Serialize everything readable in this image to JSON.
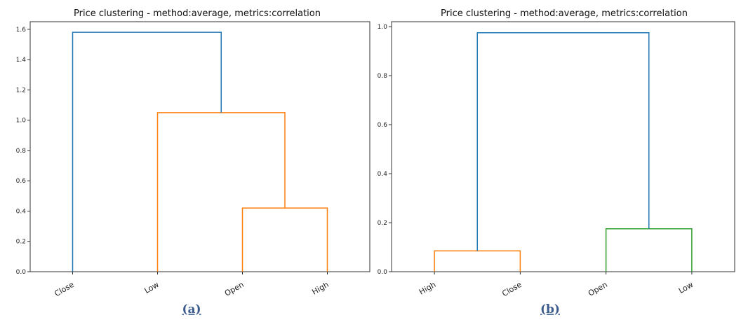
{
  "chart_data": [
    {
      "type": "dendrogram",
      "title": "Price clustering - method:average, metrics:correlation",
      "caption": "(a)",
      "leaves": [
        "Close",
        "Low",
        "Open",
        "High"
      ],
      "ylim": [
        0,
        1.65
      ],
      "yticks": [
        0.0,
        0.2,
        0.4,
        0.6,
        0.8,
        1.0,
        1.2,
        1.4,
        1.6
      ],
      "ytick_labels": [
        "0.0",
        "0.2",
        "0.4",
        "0.6",
        "0.8",
        "1.0",
        "1.2",
        "1.4",
        "1.6"
      ],
      "links": [
        {
          "left": "Open",
          "right": "High",
          "height": 0.42,
          "color": "#ff7f0e"
        },
        {
          "left": "Low",
          "right": "Open+High",
          "height": 1.05,
          "color": "#ff7f0e"
        },
        {
          "left": "Close",
          "right": "Low+Open+High",
          "height": 1.58,
          "color": "#1f77b4"
        }
      ]
    },
    {
      "type": "dendrogram",
      "title": "Price clustering - method:average, metrics:correlation",
      "caption": "(b)",
      "leaves": [
        "High",
        "Close",
        "Open",
        "Low"
      ],
      "ylim": [
        0,
        1.02
      ],
      "yticks": [
        0.0,
        0.2,
        0.4,
        0.6,
        0.8,
        1.0
      ],
      "ytick_labels": [
        "0.0",
        "0.2",
        "0.4",
        "0.6",
        "0.8",
        "1.0"
      ],
      "links": [
        {
          "left": "High",
          "right": "Close",
          "height": 0.085,
          "color": "#ff7f0e"
        },
        {
          "left": "Open",
          "right": "Low",
          "height": 0.175,
          "color": "#2ca02c"
        },
        {
          "left": "High+Close",
          "right": "Open+Low",
          "height": 0.975,
          "color": "#1f77b4"
        }
      ]
    }
  ]
}
